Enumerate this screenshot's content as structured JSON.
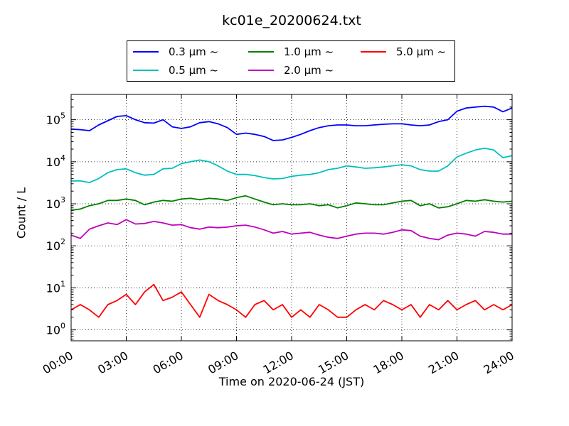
{
  "chart_data": {
    "type": "line",
    "title": "kc01e_20200624.txt",
    "xlabel": "Time on 2020-06-24 (JST)",
    "ylabel": "Count / L",
    "x_ticks": [
      "00:00",
      "03:00",
      "06:00",
      "09:00",
      "12:00",
      "15:00",
      "18:00",
      "21:00",
      "24:00"
    ],
    "x_range_hours": [
      0,
      24
    ],
    "y_scale": "log",
    "y_range": [
      0.55,
      400000
    ],
    "y_ticks": [
      {
        "value": 1,
        "base": "10",
        "exp": "0"
      },
      {
        "value": 10,
        "base": "10",
        "exp": "1"
      },
      {
        "value": 100,
        "base": "10",
        "exp": "2"
      },
      {
        "value": 1000,
        "base": "10",
        "exp": "3"
      },
      {
        "value": 10000,
        "base": "10",
        "exp": "4"
      },
      {
        "value": 100000,
        "base": "10",
        "exp": "5"
      }
    ],
    "grid": true,
    "legend_position": "top-center",
    "series": [
      {
        "name": "0.3 μm ~",
        "color": "#0000ff",
        "x": [
          0,
          0.5,
          1,
          1.5,
          2,
          2.5,
          3,
          3.5,
          4,
          4.5,
          5,
          5.5,
          6,
          6.5,
          7,
          7.5,
          8,
          8.5,
          9,
          9.5,
          10,
          10.5,
          11,
          11.5,
          12,
          12.5,
          13,
          13.5,
          14,
          14.5,
          15,
          15.5,
          16,
          16.5,
          17,
          17.5,
          18,
          18.5,
          19,
          19.5,
          20,
          20.5,
          21,
          21.5,
          22,
          22.5,
          23,
          23.5,
          24
        ],
        "y": [
          60000,
          58000,
          55000,
          75000,
          95000,
          120000,
          125000,
          100000,
          85000,
          83000,
          100000,
          68000,
          62000,
          68000,
          85000,
          90000,
          80000,
          65000,
          45000,
          48000,
          45000,
          40000,
          32000,
          33000,
          38000,
          45000,
          55000,
          65000,
          72000,
          75000,
          75000,
          72000,
          72000,
          75000,
          78000,
          80000,
          80000,
          75000,
          72000,
          75000,
          90000,
          100000,
          160000,
          190000,
          200000,
          210000,
          200000,
          155000,
          190000
        ]
      },
      {
        "name": "0.5 μm ~",
        "color": "#00bfbf",
        "x": [
          0,
          0.5,
          1,
          1.5,
          2,
          2.5,
          3,
          3.5,
          4,
          4.5,
          5,
          5.5,
          6,
          6.5,
          7,
          7.5,
          8,
          8.5,
          9,
          9.5,
          10,
          10.5,
          11,
          11.5,
          12,
          12.5,
          13,
          13.5,
          14,
          14.5,
          15,
          15.5,
          16,
          16.5,
          17,
          17.5,
          18,
          18.5,
          19,
          19.5,
          20,
          20.5,
          21,
          21.5,
          22,
          22.5,
          23,
          23.5,
          24
        ],
        "y": [
          3500,
          3500,
          3200,
          4000,
          5500,
          6500,
          6800,
          5500,
          4800,
          5000,
          6800,
          7000,
          9000,
          10000,
          11000,
          10000,
          8000,
          6000,
          5000,
          5000,
          4700,
          4200,
          3900,
          4000,
          4500,
          4800,
          5000,
          5500,
          6500,
          7000,
          8000,
          7500,
          7000,
          7200,
          7500,
          8000,
          8500,
          8000,
          6500,
          6000,
          6000,
          8000,
          13000,
          16000,
          19000,
          21000,
          19000,
          12500,
          14000
        ]
      },
      {
        "name": "1.0 μm ~",
        "color": "#008000",
        "x": [
          0,
          0.5,
          1,
          1.5,
          2,
          2.5,
          3,
          3.5,
          4,
          4.5,
          5,
          5.5,
          6,
          6.5,
          7,
          7.5,
          8,
          8.5,
          9,
          9.5,
          10,
          10.5,
          11,
          11.5,
          12,
          12.5,
          13,
          13.5,
          14,
          14.5,
          15,
          15.5,
          16,
          16.5,
          17,
          17.5,
          18,
          18.5,
          19,
          19.5,
          20,
          20.5,
          21,
          21.5,
          22,
          22.5,
          23,
          23.5,
          24
        ],
        "y": [
          700,
          750,
          900,
          1000,
          1200,
          1200,
          1300,
          1200,
          950,
          1100,
          1200,
          1150,
          1300,
          1350,
          1250,
          1350,
          1300,
          1200,
          1400,
          1550,
          1300,
          1100,
          950,
          1000,
          950,
          950,
          1000,
          900,
          950,
          800,
          900,
          1050,
          1000,
          950,
          950,
          1050,
          1150,
          1200,
          900,
          1000,
          800,
          850,
          1000,
          1200,
          1150,
          1250,
          1150,
          1100,
          1150
        ]
      },
      {
        "name": "2.0 μm ~",
        "color": "#bf00bf",
        "x": [
          0,
          0.5,
          1,
          1.5,
          2,
          2.5,
          3,
          3.5,
          4,
          4.5,
          5,
          5.5,
          6,
          6.5,
          7,
          7.5,
          8,
          8.5,
          9,
          9.5,
          10,
          10.5,
          11,
          11.5,
          12,
          12.5,
          13,
          13.5,
          14,
          14.5,
          15,
          15.5,
          16,
          16.5,
          17,
          17.5,
          18,
          18.5,
          19,
          19.5,
          20,
          20.5,
          21,
          21.5,
          22,
          22.5,
          23,
          23.5,
          24
        ],
        "y": [
          180,
          150,
          250,
          300,
          350,
          320,
          420,
          330,
          340,
          380,
          350,
          310,
          320,
          270,
          250,
          280,
          270,
          280,
          300,
          310,
          280,
          240,
          200,
          220,
          190,
          200,
          210,
          180,
          160,
          150,
          170,
          190,
          200,
          200,
          190,
          210,
          240,
          230,
          170,
          150,
          140,
          180,
          200,
          190,
          170,
          220,
          210,
          190,
          190
        ]
      },
      {
        "name": "5.0 μm ~",
        "color": "#ff0000",
        "x": [
          0,
          0.5,
          1,
          1.5,
          2,
          2.5,
          3,
          3.5,
          4,
          4.5,
          5,
          5.5,
          6,
          6.5,
          7,
          7.5,
          8,
          8.5,
          9,
          9.5,
          10,
          10.5,
          11,
          11.5,
          12,
          12.5,
          13,
          13.5,
          14,
          14.5,
          15,
          15.5,
          16,
          16.5,
          17,
          17.5,
          18,
          18.5,
          19,
          19.5,
          20,
          20.5,
          21,
          21.5,
          22,
          22.5,
          23,
          23.5,
          24
        ],
        "y": [
          3,
          4,
          3,
          2,
          4,
          5,
          7,
          4,
          8,
          12,
          5,
          6,
          8,
          4,
          2,
          7,
          5,
          4,
          3,
          2,
          4,
          5,
          3,
          4,
          2,
          3,
          2,
          4,
          3,
          2,
          2,
          3,
          4,
          3,
          5,
          4,
          3,
          4,
          2,
          4,
          3,
          5,
          3,
          4,
          5,
          3,
          4,
          3,
          4
        ]
      }
    ]
  }
}
